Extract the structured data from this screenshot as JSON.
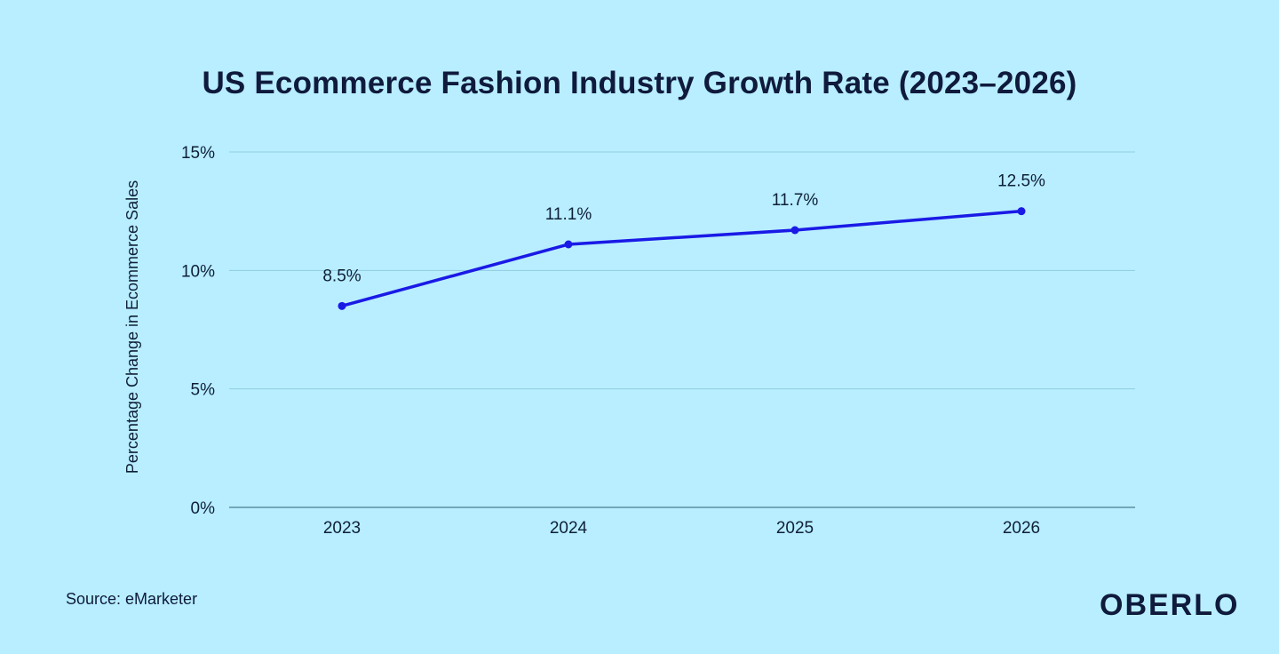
{
  "chart_data": {
    "type": "line",
    "title": "US Ecommerce Fashion Industry Growth Rate (2023–2026)",
    "xlabel": "",
    "ylabel": "Percentage Change in Ecommerce Sales",
    "categories": [
      "2023",
      "2024",
      "2025",
      "2026"
    ],
    "values": [
      8.5,
      11.1,
      11.7,
      12.5
    ],
    "data_labels": [
      "8.5%",
      "11.1%",
      "11.7%",
      "12.5%"
    ],
    "ylim": [
      0,
      15
    ],
    "yticks": [
      0,
      5,
      10,
      15
    ],
    "ytick_labels": [
      "0%",
      "5%",
      "10%",
      "15%"
    ],
    "grid": true,
    "colors": {
      "line": "#1a1ae6",
      "grid": "#8fcde0",
      "axis": "#5a8fa3"
    }
  },
  "footer": {
    "source": "Source: eMarketer",
    "logo": "OBERLO"
  }
}
